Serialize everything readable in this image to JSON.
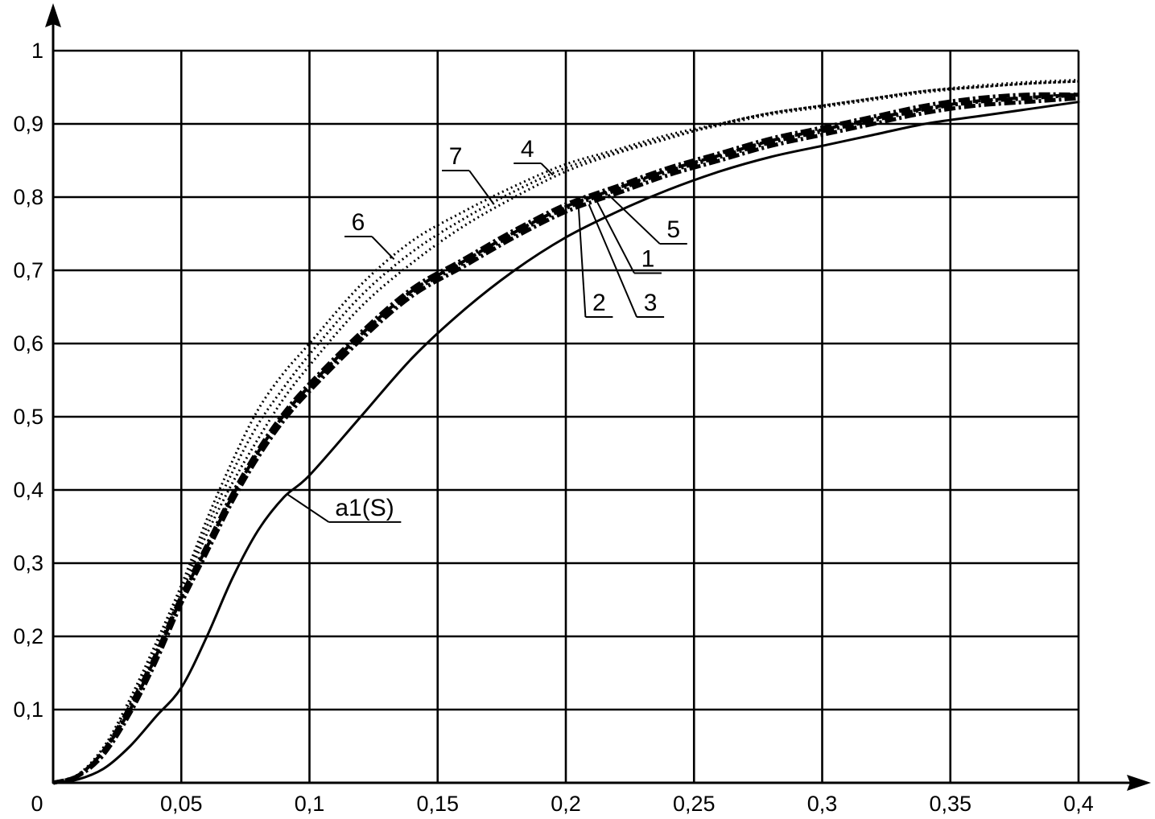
{
  "chart_data": {
    "type": "line",
    "title": "",
    "xlabel": "",
    "ylabel": "",
    "xlim": [
      0,
      0.4
    ],
    "ylim": [
      0,
      1
    ],
    "grid": true,
    "x_ticks": [
      {
        "value": 0,
        "label": "0"
      },
      {
        "value": 0.05,
        "label": "0,05"
      },
      {
        "value": 0.1,
        "label": "0,1"
      },
      {
        "value": 0.15,
        "label": "0,15"
      },
      {
        "value": 0.2,
        "label": "0,2"
      },
      {
        "value": 0.25,
        "label": "0,25"
      },
      {
        "value": 0.3,
        "label": "0,3"
      },
      {
        "value": 0.35,
        "label": "0,35"
      },
      {
        "value": 0.4,
        "label": "0,4"
      }
    ],
    "y_ticks": [
      {
        "value": 0.1,
        "label": "0,1"
      },
      {
        "value": 0.2,
        "label": "0,2"
      },
      {
        "value": 0.3,
        "label": "0,3"
      },
      {
        "value": 0.4,
        "label": "0,4"
      },
      {
        "value": 0.5,
        "label": "0,5"
      },
      {
        "value": 0.6,
        "label": "0,6"
      },
      {
        "value": 0.7,
        "label": "0,7"
      },
      {
        "value": 0.8,
        "label": "0,8"
      },
      {
        "value": 0.9,
        "label": "0,9"
      },
      {
        "value": 1,
        "label": "1"
      }
    ],
    "series": [
      {
        "label": "a1(S)",
        "style": "solid",
        "color": "#000000",
        "x": [
          0,
          0.01,
          0.02,
          0.03,
          0.04,
          0.05,
          0.06,
          0.07,
          0.08,
          0.09,
          0.1,
          0.12,
          0.14,
          0.16,
          0.18,
          0.2,
          0.22,
          0.24,
          0.26,
          0.28,
          0.3,
          0.32,
          0.34,
          0.36,
          0.38,
          0.4
        ],
        "y": [
          0,
          0.005,
          0.02,
          0.05,
          0.09,
          0.13,
          0.2,
          0.28,
          0.345,
          0.39,
          0.42,
          0.5,
          0.58,
          0.645,
          0.7,
          0.745,
          0.78,
          0.81,
          0.835,
          0.855,
          0.87,
          0.885,
          0.9,
          0.91,
          0.92,
          0.93
        ]
      },
      {
        "label": "1",
        "style": "dashdot",
        "color": "#000000",
        "x": [
          0,
          0.01,
          0.02,
          0.03,
          0.04,
          0.05,
          0.06,
          0.07,
          0.08,
          0.09,
          0.1,
          0.12,
          0.14,
          0.16,
          0.18,
          0.2,
          0.22,
          0.24,
          0.26,
          0.28,
          0.3,
          0.32,
          0.34,
          0.36,
          0.38,
          0.4
        ],
        "y": [
          0,
          0.01,
          0.04,
          0.1,
          0.17,
          0.25,
          0.32,
          0.39,
          0.45,
          0.5,
          0.54,
          0.61,
          0.67,
          0.71,
          0.75,
          0.785,
          0.81,
          0.835,
          0.855,
          0.875,
          0.89,
          0.905,
          0.92,
          0.93,
          0.935,
          0.94
        ]
      },
      {
        "label": "2",
        "style": "dashdot",
        "color": "#000000",
        "x": [
          0,
          0.01,
          0.02,
          0.03,
          0.04,
          0.05,
          0.06,
          0.07,
          0.08,
          0.09,
          0.1,
          0.12,
          0.14,
          0.16,
          0.18,
          0.2,
          0.22,
          0.24,
          0.26,
          0.28,
          0.3,
          0.32,
          0.34,
          0.36,
          0.38,
          0.4
        ],
        "y": [
          0,
          0.01,
          0.04,
          0.095,
          0.165,
          0.245,
          0.315,
          0.385,
          0.445,
          0.495,
          0.535,
          0.605,
          0.665,
          0.705,
          0.745,
          0.78,
          0.805,
          0.83,
          0.85,
          0.87,
          0.885,
          0.9,
          0.915,
          0.925,
          0.93,
          0.935
        ]
      },
      {
        "label": "3",
        "style": "dashdot",
        "color": "#000000",
        "x": [
          0,
          0.01,
          0.02,
          0.03,
          0.04,
          0.05,
          0.06,
          0.07,
          0.08,
          0.09,
          0.1,
          0.12,
          0.14,
          0.16,
          0.18,
          0.2,
          0.22,
          0.24,
          0.26,
          0.28,
          0.3,
          0.32,
          0.34,
          0.36,
          0.38,
          0.4
        ],
        "y": [
          0,
          0.01,
          0.045,
          0.105,
          0.175,
          0.255,
          0.325,
          0.395,
          0.455,
          0.505,
          0.545,
          0.615,
          0.675,
          0.715,
          0.755,
          0.79,
          0.815,
          0.84,
          0.86,
          0.88,
          0.895,
          0.91,
          0.925,
          0.935,
          0.94,
          0.94
        ]
      },
      {
        "label": "4",
        "style": "dotted",
        "color": "#000000",
        "x": [
          0,
          0.01,
          0.02,
          0.03,
          0.04,
          0.05,
          0.06,
          0.07,
          0.08,
          0.09,
          0.1,
          0.12,
          0.14,
          0.16,
          0.18,
          0.2,
          0.22,
          0.24,
          0.26,
          0.28,
          0.3,
          0.32,
          0.34,
          0.36,
          0.38,
          0.4
        ],
        "y": [
          0,
          0.012,
          0.05,
          0.11,
          0.18,
          0.26,
          0.34,
          0.41,
          0.47,
          0.525,
          0.57,
          0.65,
          0.71,
          0.76,
          0.8,
          0.835,
          0.86,
          0.88,
          0.9,
          0.915,
          0.925,
          0.935,
          0.945,
          0.952,
          0.957,
          0.96
        ]
      },
      {
        "label": "5",
        "style": "dashed",
        "color": "#000000",
        "x": [
          0,
          0.01,
          0.02,
          0.03,
          0.04,
          0.05,
          0.06,
          0.07,
          0.08,
          0.09,
          0.1,
          0.12,
          0.14,
          0.16,
          0.18,
          0.2,
          0.22,
          0.24,
          0.26,
          0.28,
          0.3,
          0.32,
          0.34,
          0.36,
          0.38,
          0.4
        ],
        "y": [
          0,
          0.011,
          0.045,
          0.1,
          0.172,
          0.252,
          0.322,
          0.392,
          0.452,
          0.502,
          0.542,
          0.612,
          0.672,
          0.712,
          0.752,
          0.787,
          0.812,
          0.837,
          0.857,
          0.877,
          0.892,
          0.907,
          0.921,
          0.931,
          0.936,
          0.94
        ]
      },
      {
        "label": "6",
        "style": "dotted",
        "color": "#000000",
        "x": [
          0,
          0.01,
          0.02,
          0.03,
          0.04,
          0.05,
          0.06,
          0.07,
          0.08,
          0.09,
          0.1,
          0.12,
          0.14,
          0.16,
          0.18,
          0.2,
          0.22,
          0.24,
          0.26,
          0.28,
          0.3,
          0.32,
          0.34,
          0.36,
          0.38,
          0.4
        ],
        "y": [
          0,
          0.012,
          0.05,
          0.115,
          0.19,
          0.27,
          0.36,
          0.44,
          0.51,
          0.56,
          0.6,
          0.68,
          0.74,
          0.78,
          0.815,
          0.845,
          0.865,
          0.885,
          0.9,
          0.915,
          0.925,
          0.935,
          0.945,
          0.95,
          0.955,
          0.958
        ]
      },
      {
        "label": "7",
        "style": "dotted",
        "color": "#000000",
        "x": [
          0,
          0.01,
          0.02,
          0.03,
          0.04,
          0.05,
          0.06,
          0.07,
          0.08,
          0.09,
          0.1,
          0.12,
          0.14,
          0.16,
          0.18,
          0.2,
          0.22,
          0.24,
          0.26,
          0.28,
          0.3,
          0.32,
          0.34,
          0.36,
          0.38,
          0.4
        ],
        "y": [
          0,
          0.012,
          0.05,
          0.112,
          0.185,
          0.265,
          0.35,
          0.425,
          0.49,
          0.54,
          0.585,
          0.665,
          0.725,
          0.77,
          0.808,
          0.84,
          0.862,
          0.882,
          0.898,
          0.913,
          0.923,
          0.933,
          0.943,
          0.95,
          0.955,
          0.958
        ]
      }
    ],
    "annotations": [
      {
        "text": "7",
        "tx": 0.157,
        "ty": 0.845,
        "px": 0.172,
        "py": 0.79
      },
      {
        "text": "4",
        "tx": 0.185,
        "ty": 0.855,
        "px": 0.195,
        "py": 0.83
      },
      {
        "text": "6",
        "tx": 0.119,
        "ty": 0.755,
        "px": 0.133,
        "py": 0.715
      },
      {
        "text": "5",
        "tx": 0.242,
        "ty": 0.745,
        "px": 0.217,
        "py": 0.802
      },
      {
        "text": "1",
        "tx": 0.232,
        "ty": 0.705,
        "px": 0.212,
        "py": 0.795
      },
      {
        "text": "2",
        "tx": 0.213,
        "ty": 0.645,
        "px": 0.205,
        "py": 0.785
      },
      {
        "text": "3",
        "tx": 0.233,
        "ty": 0.645,
        "px": 0.209,
        "py": 0.79
      },
      {
        "text": "a1(S)",
        "tx": 0.11,
        "ty": 0.365,
        "px": 0.091,
        "py": 0.395
      }
    ]
  }
}
